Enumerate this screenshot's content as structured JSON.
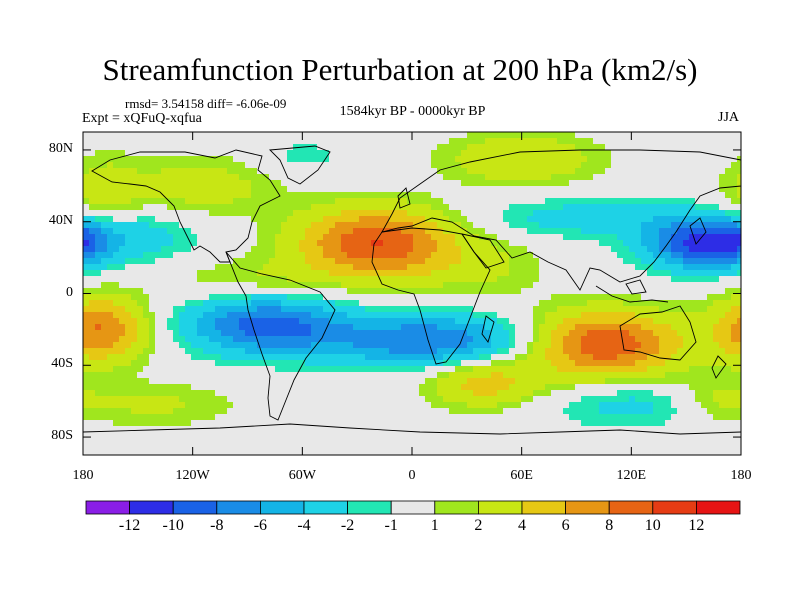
{
  "chart_data": {
    "type": "heatmap",
    "title": "Streamfunction Perturbation at 200 hPa (km2/s)",
    "stats_text": "rmsd= 3.54158 diff= -6.06e-09",
    "experiment_text": "Expt = xQFuQ-xqfua",
    "period_text": "1584kyr BP - 0000kyr BP",
    "season": "JJA",
    "x_ticks": [
      "180",
      "120W",
      "60W",
      "0",
      "60E",
      "120E",
      "180"
    ],
    "x_tick_values": [
      -180,
      -120,
      -60,
      0,
      60,
      120,
      180
    ],
    "y_ticks": [
      "80N",
      "40N",
      "0",
      "40S",
      "80S"
    ],
    "y_tick_values": [
      80,
      40,
      0,
      -40,
      -80
    ],
    "xlim": [
      -180,
      180
    ],
    "ylim": [
      -90,
      90
    ],
    "colorbar_labels": [
      "-12",
      "-10",
      "-8",
      "-6",
      "-4",
      "-2",
      "-1",
      "1",
      "2",
      "4",
      "6",
      "8",
      "10",
      "12"
    ],
    "colorbar_colors": [
      "#8a1ee6",
      "#2d2de6",
      "#1a62e6",
      "#1a8ce6",
      "#14b4e6",
      "#1ed2e6",
      "#22e6b4",
      "#e8e8e8",
      "#a0e61e",
      "#c8e614",
      "#e6c814",
      "#e69614",
      "#e66414",
      "#e63c14",
      "#e61414"
    ],
    "anomalies": [
      {
        "lon": -20,
        "lat": 28,
        "amp": 10,
        "slon": 30,
        "slat": 14
      },
      {
        "lon": 105,
        "lat": -28,
        "amp": 10,
        "slon": 30,
        "slat": 13
      },
      {
        "lon": 160,
        "lat": 28,
        "amp": -11,
        "slon": 22,
        "slat": 10
      },
      {
        "lon": -80,
        "lat": -18,
        "amp": -9,
        "slon": 30,
        "slat": 11
      },
      {
        "lon": 10,
        "lat": -26,
        "amp": -8,
        "slon": 40,
        "slat": 10
      },
      {
        "lon": -170,
        "lat": -20,
        "amp": 8,
        "slon": 18,
        "slat": 13
      },
      {
        "lon": 60,
        "lat": 75,
        "amp": 4,
        "slon": 30,
        "slat": 10
      },
      {
        "lon": -115,
        "lat": 60,
        "amp": 3,
        "slon": 30,
        "slat": 12
      },
      {
        "lon": -170,
        "lat": 55,
        "amp": 3,
        "slon": 15,
        "slat": 15
      },
      {
        "lon": 40,
        "lat": -50,
        "amp": 5,
        "slon": 22,
        "slat": 10
      },
      {
        "lon": 95,
        "lat": 42,
        "amp": -3,
        "slon": 40,
        "slat": 8
      },
      {
        "lon": -150,
        "lat": 32,
        "amp": -3,
        "slon": 24,
        "slat": 10
      },
      {
        "lon": 130,
        "lat": -62,
        "amp": -3,
        "slon": 40,
        "slat": 9
      },
      {
        "lon": -145,
        "lat": -62,
        "amp": 2.5,
        "slon": 35,
        "slat": 9
      },
      {
        "lon": 165,
        "lat": -60,
        "amp": 3,
        "slon": 18,
        "slat": 9
      },
      {
        "lon": -60,
        "lat": 76,
        "amp": -1.5,
        "slon": 20,
        "slat": 8
      },
      {
        "lon": -178,
        "lat": 30,
        "amp": -2.5,
        "slon": 8,
        "slat": 8
      },
      {
        "lon": 40,
        "lat": 15,
        "amp": 2,
        "slon": 25,
        "slat": 12
      },
      {
        "lon": -90,
        "lat": 8,
        "amp": 2,
        "slon": 30,
        "slat": 8
      }
    ]
  }
}
